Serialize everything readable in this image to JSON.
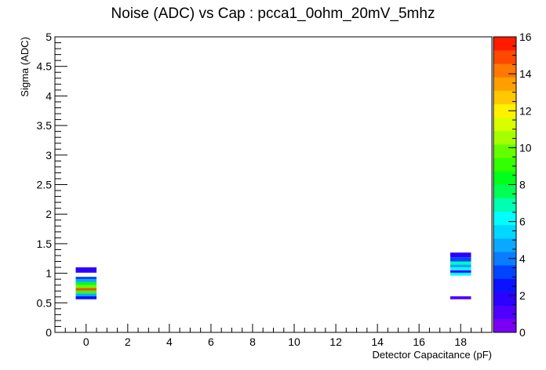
{
  "chart_data": {
    "type": "heatmap",
    "title": "Noise (ADC) vs Cap : pcca1_0ohm_20mV_5mhz",
    "xlabel": "Detector Capacitance (pF)",
    "ylabel": "Sigma (ADC)",
    "xlim": [
      -1.5,
      19.5
    ],
    "ylim": [
      0,
      5
    ],
    "x_ticks": [
      0,
      2,
      4,
      6,
      8,
      10,
      12,
      14,
      16,
      18
    ],
    "x_tick_labels": [
      "0",
      "2",
      "4",
      "6",
      "8",
      "10",
      "12",
      "14",
      "16",
      "18"
    ],
    "y_ticks": [
      0,
      0.5,
      1,
      1.5,
      2,
      2.5,
      3,
      3.5,
      4,
      4.5,
      5
    ],
    "y_tick_labels": [
      "0",
      "0.5",
      "1",
      "1.5",
      "2",
      "2.5",
      "3",
      "3.5",
      "4",
      "4.5",
      "5"
    ],
    "z_range": [
      0,
      16
    ],
    "z_ticks": [
      0,
      2,
      4,
      6,
      8,
      10,
      12,
      14,
      16
    ],
    "z_tick_labels": [
      "0",
      "2",
      "4",
      "6",
      "8",
      "10",
      "12",
      "14",
      "16"
    ],
    "palette": [
      "#7a00f5",
      "#4f00ff",
      "#2d00ff",
      "#0b12ff",
      "#0044ff",
      "#0a7cff",
      "#0aa8ff",
      "#00d8ff",
      "#00ffff",
      "#00ffb0",
      "#00ff55",
      "#00ff1a",
      "#33ff00",
      "#66ff00",
      "#a5ff00",
      "#d8ff00",
      "#fff200",
      "#ffc800",
      "#ffa000",
      "#ff7800",
      "#ff4800",
      "#ff1a00"
    ],
    "bin_width_x": 1,
    "cells": [
      {
        "x": 0,
        "y0": 0.56,
        "y1": 0.61,
        "z": 2.5
      },
      {
        "x": 0,
        "y0": 0.61,
        "y1": 0.66,
        "z": 4.5
      },
      {
        "x": 0,
        "y0": 0.66,
        "y1": 0.71,
        "z": 9
      },
      {
        "x": 0,
        "y0": 0.71,
        "y1": 0.75,
        "z": 15
      },
      {
        "x": 0,
        "y0": 0.75,
        "y1": 0.8,
        "z": 10
      },
      {
        "x": 0,
        "y0": 0.8,
        "y1": 0.85,
        "z": 8
      },
      {
        "x": 0,
        "y0": 0.85,
        "y1": 0.9,
        "z": 5
      },
      {
        "x": 0,
        "y0": 0.9,
        "y1": 0.94,
        "z": 3
      },
      {
        "x": 0,
        "y0": 1.01,
        "y1": 1.1,
        "z": 1.8
      },
      {
        "x": 18,
        "y0": 0.56,
        "y1": 0.61,
        "z": 1.2
      },
      {
        "x": 18,
        "y0": 0.96,
        "y1": 1.01,
        "z": 6
      },
      {
        "x": 18,
        "y0": 1.01,
        "y1": 1.05,
        "z": 1.8
      },
      {
        "x": 18,
        "y0": 1.05,
        "y1": 1.1,
        "z": 6
      },
      {
        "x": 18,
        "y0": 1.1,
        "y1": 1.15,
        "z": 4.5
      },
      {
        "x": 18,
        "y0": 1.15,
        "y1": 1.2,
        "z": 7
      },
      {
        "x": 18,
        "y0": 1.2,
        "y1": 1.27,
        "z": 3
      },
      {
        "x": 18,
        "y0": 1.27,
        "y1": 1.35,
        "z": 2
      }
    ]
  }
}
